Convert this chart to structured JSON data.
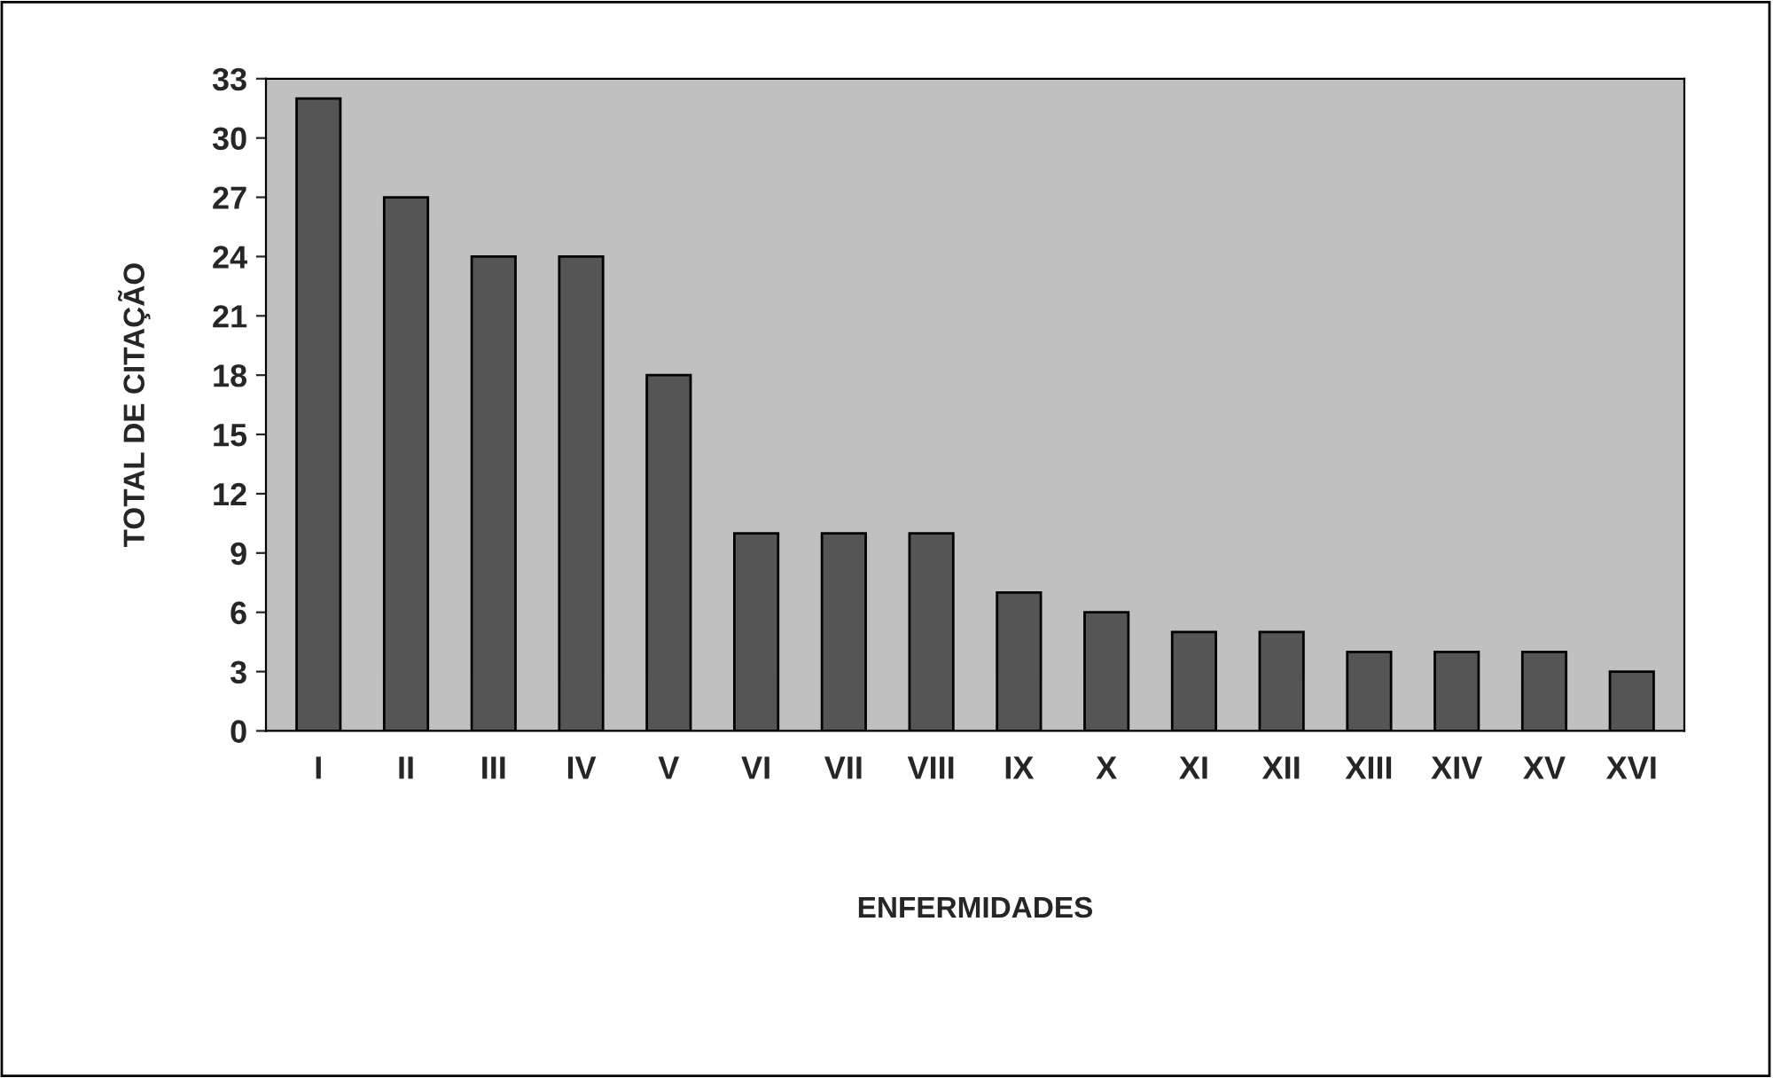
{
  "chart_data": {
    "type": "bar",
    "categories": [
      "I",
      "II",
      "III",
      "IV",
      "V",
      "VI",
      "VII",
      "VIII",
      "IX",
      "X",
      "XI",
      "XII",
      "XIII",
      "XIV",
      "XV",
      "XVI"
    ],
    "values": [
      32,
      27,
      24,
      24,
      18,
      10,
      10,
      10,
      7,
      6,
      5,
      5,
      4,
      4,
      4,
      3
    ],
    "color": "#555555",
    "xlabel": "ENFERMIDADES",
    "ylabel": "TOTAL DE CITAÇÃO",
    "ylim": [
      0,
      33
    ],
    "yticks": [
      0,
      3,
      6,
      9,
      12,
      15,
      18,
      21,
      24,
      27,
      30,
      33
    ],
    "grid": false,
    "legend": false
  }
}
